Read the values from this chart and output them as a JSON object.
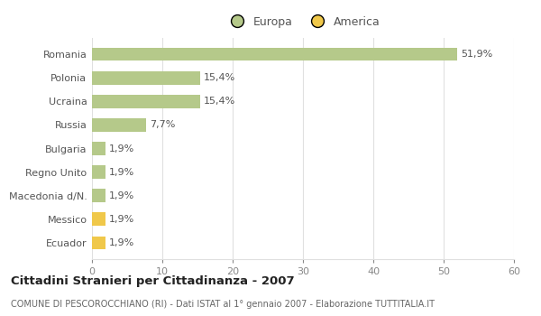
{
  "categories": [
    "Romania",
    "Polonia",
    "Ucraina",
    "Russia",
    "Bulgaria",
    "Regno Unito",
    "Macedonia d/N.",
    "Messico",
    "Ecuador"
  ],
  "values": [
    51.9,
    15.4,
    15.4,
    7.7,
    1.9,
    1.9,
    1.9,
    1.9,
    1.9
  ],
  "labels": [
    "51,9%",
    "15,4%",
    "15,4%",
    "7,7%",
    "1,9%",
    "1,9%",
    "1,9%",
    "1,9%",
    "1,9%"
  ],
  "colors": [
    "#b5c98a",
    "#b5c98a",
    "#b5c98a",
    "#b5c98a",
    "#b5c98a",
    "#b5c98a",
    "#b5c98a",
    "#f0c84a",
    "#f0c84a"
  ],
  "continent": [
    "Europa",
    "Europa",
    "Europa",
    "Europa",
    "Europa",
    "Europa",
    "Europa",
    "America",
    "America"
  ],
  "europa_color": "#b5c98a",
  "america_color": "#f0c84a",
  "xlim": [
    0,
    60
  ],
  "xticks": [
    0,
    10,
    20,
    30,
    40,
    50,
    60
  ],
  "title": "Cittadini Stranieri per Cittadinanza - 2007",
  "subtitle": "COMUNE DI PESCOROCCHIANO (RI) - Dati ISTAT al 1° gennaio 2007 - Elaborazione TUTTITALIA.IT",
  "legend_europa": "Europa",
  "legend_america": "America",
  "bg_color": "#ffffff",
  "grid_color": "#e0e0e0",
  "bar_height": 0.55,
  "label_fontsize": 8,
  "ytick_fontsize": 8,
  "xtick_fontsize": 8
}
